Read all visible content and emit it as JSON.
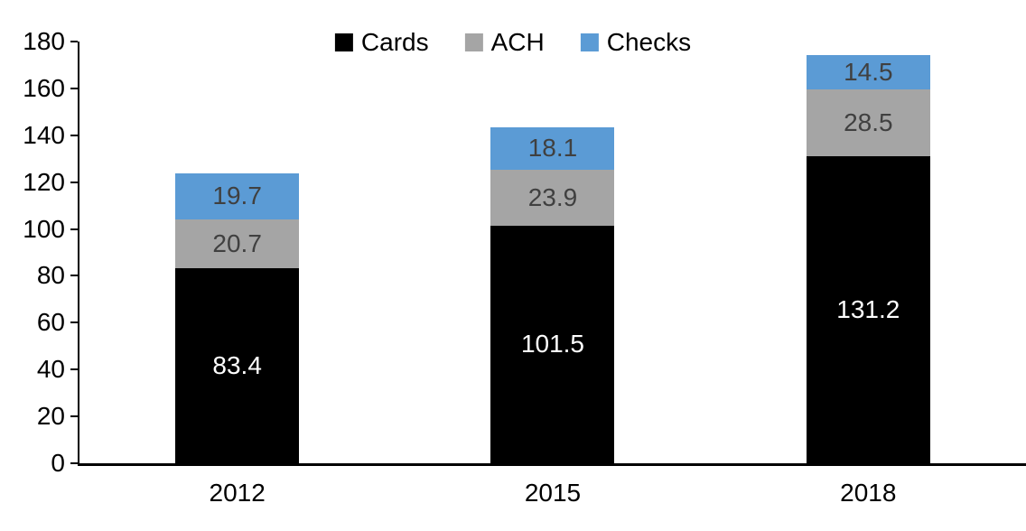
{
  "chart_data": {
    "type": "bar",
    "stacked": true,
    "orientation": "vertical",
    "title": "",
    "xlabel": "",
    "ylabel": "",
    "categories": [
      "2012",
      "2015",
      "2018"
    ],
    "series": [
      {
        "name": "Cards",
        "color": "#000000",
        "label_color": "#ffffff",
        "values": [
          83.4,
          101.5,
          131.2
        ]
      },
      {
        "name": "ACH",
        "color": "#a5a5a5",
        "label_color": "#404040",
        "values": [
          20.7,
          23.9,
          28.5
        ]
      },
      {
        "name": "Checks",
        "color": "#5b9bd5",
        "label_color": "#404040",
        "values": [
          19.7,
          18.1,
          14.5
        ]
      }
    ],
    "ylim": [
      0,
      180
    ],
    "yticks": [
      0,
      20,
      40,
      60,
      80,
      100,
      120,
      140,
      160,
      180
    ],
    "grid": false,
    "legend_position": "top-center",
    "value_labels": "inside-center, one decimal",
    "axis_color": "#000000",
    "background_color": "#ffffff"
  }
}
